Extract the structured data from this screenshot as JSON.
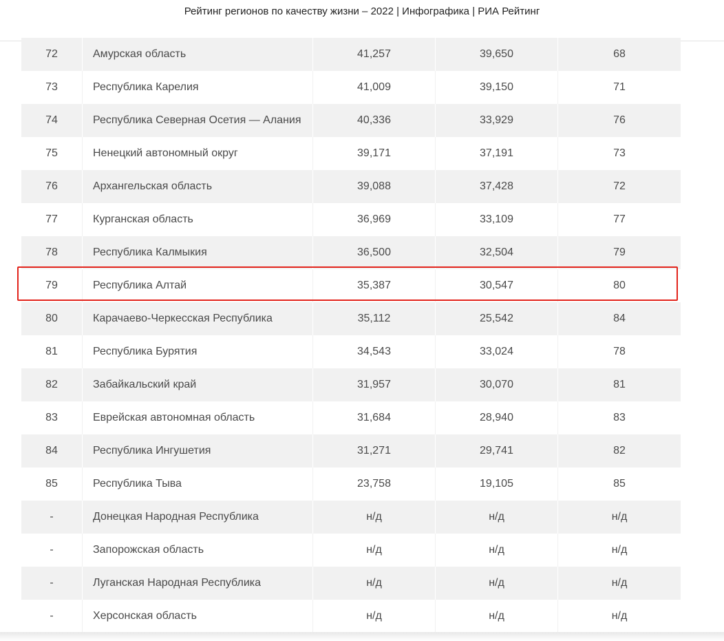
{
  "page": {
    "title": "Рейтинг регионов по качеству жизни – 2022 | Инфографика | РИА Рейтинг",
    "highlight_color": "#e2231a",
    "highlighted_rank": "79"
  },
  "rows": [
    {
      "rank": "72",
      "region": "Амурская область",
      "v1": "41,257",
      "v2": "39,650",
      "v3": "68"
    },
    {
      "rank": "73",
      "region": "Республика Карелия",
      "v1": "41,009",
      "v2": "39,150",
      "v3": "71"
    },
    {
      "rank": "74",
      "region": "Республика Северная Осетия — Алания",
      "v1": "40,336",
      "v2": "33,929",
      "v3": "76"
    },
    {
      "rank": "75",
      "region": "Ненецкий автономный округ",
      "v1": "39,171",
      "v2": "37,191",
      "v3": "73"
    },
    {
      "rank": "76",
      "region": "Архангельская область",
      "v1": "39,088",
      "v2": "37,428",
      "v3": "72"
    },
    {
      "rank": "77",
      "region": "Курганская область",
      "v1": "36,969",
      "v2": "33,109",
      "v3": "77"
    },
    {
      "rank": "78",
      "region": "Республика Калмыкия",
      "v1": "36,500",
      "v2": "32,504",
      "v3": "79"
    },
    {
      "rank": "79",
      "region": "Республика Алтай",
      "v1": "35,387",
      "v2": "30,547",
      "v3": "80"
    },
    {
      "rank": "80",
      "region": "Карачаево-Черкесская Республика",
      "v1": "35,112",
      "v2": "25,542",
      "v3": "84"
    },
    {
      "rank": "81",
      "region": "Республика Бурятия",
      "v1": "34,543",
      "v2": "33,024",
      "v3": "78"
    },
    {
      "rank": "82",
      "region": "Забайкальский край",
      "v1": "31,957",
      "v2": "30,070",
      "v3": "81"
    },
    {
      "rank": "83",
      "region": "Еврейская автономная область",
      "v1": "31,684",
      "v2": "28,940",
      "v3": "83"
    },
    {
      "rank": "84",
      "region": "Республика Ингушетия",
      "v1": "31,271",
      "v2": "29,741",
      "v3": "82"
    },
    {
      "rank": "85",
      "region": "Республика Тыва",
      "v1": "23,758",
      "v2": "19,105",
      "v3": "85"
    },
    {
      "rank": "-",
      "region": "Донецкая Народная Республика",
      "v1": "н/д",
      "v2": "н/д",
      "v3": "н/д"
    },
    {
      "rank": "-",
      "region": "Запорожская область",
      "v1": "н/д",
      "v2": "н/д",
      "v3": "н/д"
    },
    {
      "rank": "-",
      "region": "Луганская Народная Республика",
      "v1": "н/д",
      "v2": "н/д",
      "v3": "н/д"
    },
    {
      "rank": "-",
      "region": "Херсонская область",
      "v1": "н/д",
      "v2": "н/д",
      "v3": "н/д"
    }
  ]
}
